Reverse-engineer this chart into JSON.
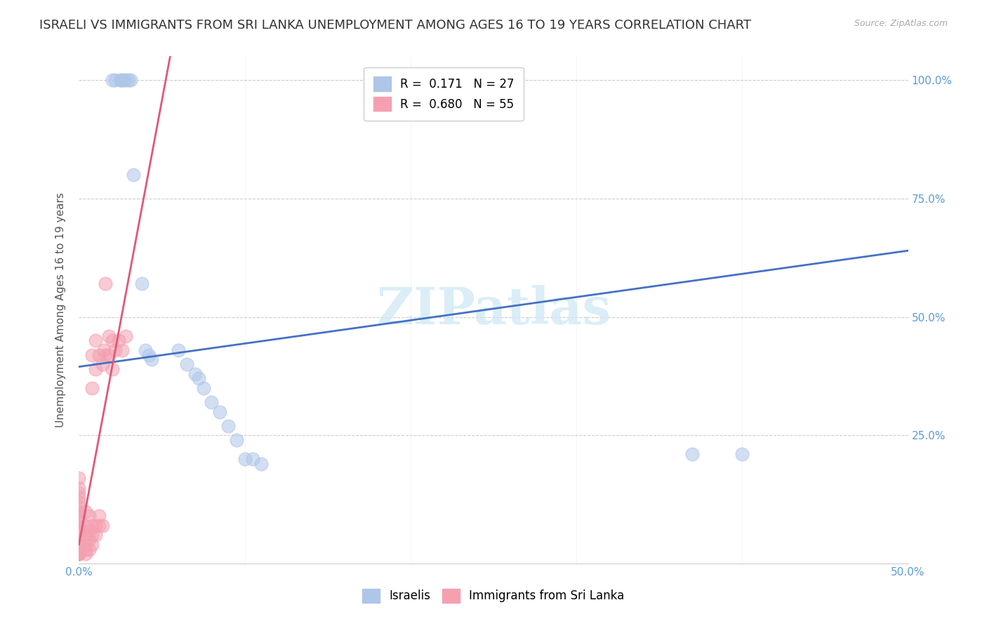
{
  "title": "ISRAELI VS IMMIGRANTS FROM SRI LANKA UNEMPLOYMENT AMONG AGES 16 TO 19 YEARS CORRELATION CHART",
  "source": "Source: ZipAtlas.com",
  "ylabel": "Unemployment Among Ages 16 to 19 years",
  "watermark": "ZIPatlas",
  "xlim": [
    0.0,
    0.5
  ],
  "ylim": [
    -0.02,
    1.05
  ],
  "xticks": [
    0.0,
    0.1,
    0.2,
    0.3,
    0.4,
    0.5
  ],
  "xtick_labels": [
    "0.0%",
    "",
    "",
    "",
    "",
    "50.0%"
  ],
  "yticks": [
    0.0,
    0.25,
    0.5,
    0.75,
    1.0
  ],
  "ytick_labels_right": [
    "",
    "25.0%",
    "50.0%",
    "75.0%",
    "100.0%"
  ],
  "legend_entries": [
    {
      "label": "R =  0.171   N = 27",
      "color": "#aec6e8"
    },
    {
      "label": "R =  0.680   N = 55",
      "color": "#f4a0b0"
    }
  ],
  "israelis_color": "#aec6e8",
  "israelis_trend_color": "#4472c4",
  "srilanka_color": "#f4a0b0",
  "srilanka_trend_color": "#e05878",
  "israelis_x": [
    0.02,
    0.022,
    0.025,
    0.025,
    0.027,
    0.028,
    0.03,
    0.031,
    0.033,
    0.038,
    0.04,
    0.042,
    0.044,
    0.06,
    0.065,
    0.07,
    0.072,
    0.075,
    0.08,
    0.085,
    0.09,
    0.095,
    0.1,
    0.105,
    0.11,
    0.37,
    0.4
  ],
  "israelis_y": [
    1.0,
    1.0,
    1.0,
    1.0,
    1.0,
    1.0,
    1.0,
    1.0,
    0.8,
    0.57,
    0.43,
    0.42,
    0.41,
    0.43,
    0.4,
    0.38,
    0.37,
    0.35,
    0.32,
    0.3,
    0.27,
    0.24,
    0.2,
    0.2,
    0.19,
    0.21,
    0.21
  ],
  "israelis_trend_x": [
    0.0,
    0.5
  ],
  "israelis_trend_y": [
    0.395,
    0.64
  ],
  "srilanka_x": [
    0.0,
    0.0,
    0.0,
    0.0,
    0.0,
    0.0,
    0.0,
    0.0,
    0.0,
    0.0,
    0.0,
    0.0,
    0.0,
    0.0,
    0.0,
    0.0,
    0.0,
    0.0,
    0.0,
    0.0,
    0.004,
    0.004,
    0.004,
    0.004,
    0.004,
    0.004,
    0.006,
    0.006,
    0.006,
    0.006,
    0.008,
    0.008,
    0.008,
    0.008,
    0.008,
    0.01,
    0.01,
    0.01,
    0.01,
    0.012,
    0.012,
    0.012,
    0.014,
    0.014,
    0.015,
    0.016,
    0.016,
    0.018,
    0.018,
    0.02,
    0.02,
    0.022,
    0.024,
    0.026,
    0.028
  ],
  "srilanka_y": [
    0.0,
    0.0,
    0.0,
    0.0,
    0.0,
    0.01,
    0.02,
    0.03,
    0.04,
    0.05,
    0.06,
    0.07,
    0.08,
    0.09,
    0.1,
    0.11,
    0.12,
    0.13,
    0.14,
    0.16,
    0.0,
    0.01,
    0.02,
    0.04,
    0.06,
    0.09,
    0.01,
    0.03,
    0.05,
    0.08,
    0.02,
    0.04,
    0.06,
    0.35,
    0.42,
    0.04,
    0.06,
    0.39,
    0.45,
    0.06,
    0.08,
    0.42,
    0.06,
    0.4,
    0.43,
    0.42,
    0.57,
    0.42,
    0.46,
    0.39,
    0.45,
    0.43,
    0.45,
    0.43,
    0.46
  ],
  "srilanka_trend_x": [
    0.0,
    0.055
  ],
  "srilanka_trend_y": [
    0.02,
    1.05
  ],
  "grid_color": "#cccccc",
  "background_color": "#ffffff",
  "title_fontsize": 13,
  "axis_label_fontsize": 11,
  "tick_fontsize": 11,
  "tick_color_right": "#5b9bd5",
  "tick_color_bottom": "#5b9bd5",
  "legend_fontsize": 12,
  "marker_size": 180,
  "marker_alpha": 0.55
}
